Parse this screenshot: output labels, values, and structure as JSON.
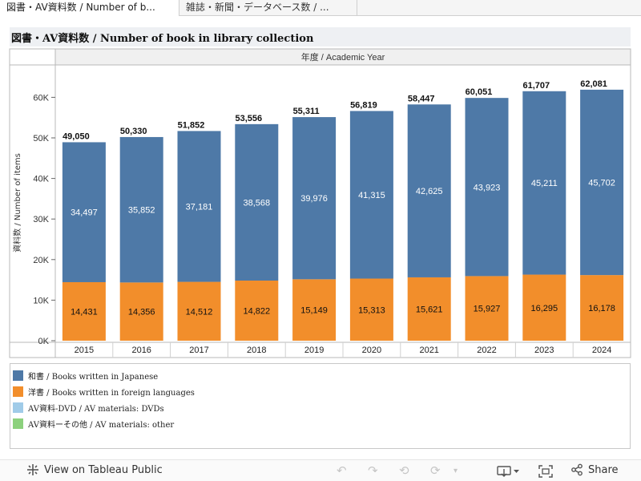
{
  "tabs": [
    "図書・AV資料数 / Number of b...",
    "雑誌・新聞・データベース数 / ..."
  ],
  "title": "図書・AV資料数 / Number of book in library collection",
  "colors": {
    "japanese": "#4e79a7",
    "foreign": "#f28e2b",
    "dvd": "#a0cbe8",
    "other": "#8cd17d"
  },
  "chart_data": {
    "type": "bar",
    "stacked": true,
    "title": "図書・AV資料数 / Number of book in library collection",
    "column_header": "年度 / Academic Year",
    "xlabel": "",
    "ylabel": "資料数 / Number of items",
    "ylim": [
      0,
      70000
    ],
    "yticks": [
      0,
      10000,
      20000,
      30000,
      40000,
      50000,
      60000
    ],
    "ytick_labels": [
      "0K",
      "10K",
      "20K",
      "30K",
      "40K",
      "50K",
      "60K"
    ],
    "categories": [
      "2015",
      "2016",
      "2017",
      "2018",
      "2019",
      "2020",
      "2021",
      "2022",
      "2023",
      "2024"
    ],
    "series": [
      {
        "name": "和書 / Books written in Japanese",
        "key": "japanese",
        "values": [
          34497,
          35852,
          37181,
          38568,
          39976,
          41315,
          42625,
          43923,
          45211,
          45702
        ],
        "labels": [
          "34,497",
          "35,852",
          "37,181",
          "38,568",
          "39,976",
          "41,315",
          "42,625",
          "43,923",
          "45,211",
          "45,702"
        ]
      },
      {
        "name": "洋書 / Books written in foreign languages",
        "key": "foreign",
        "values": [
          14431,
          14356,
          14512,
          14822,
          15149,
          15313,
          15621,
          15927,
          16295,
          16178
        ],
        "labels": [
          "14,431",
          "14,356",
          "14,512",
          "14,822",
          "15,149",
          "15,313",
          "15,621",
          "15,927",
          "16,295",
          "16,178"
        ]
      }
    ],
    "totals": [
      49050,
      50330,
      51852,
      53556,
      55311,
      56819,
      58447,
      60051,
      61707,
      62081
    ],
    "total_labels": [
      "49,050",
      "50,330",
      "51,852",
      "53,556",
      "55,311",
      "56,819",
      "58,447",
      "60,051",
      "61,707",
      "62,081"
    ]
  },
  "legend": [
    {
      "label": "和書 / Books written in Japanese",
      "color": "#4e79a7"
    },
    {
      "label": "洋書 / Books written in foreign languages",
      "color": "#f28e2b"
    },
    {
      "label": "AV資料-DVD / AV materials: DVDs",
      "color": "#a0cbe8"
    },
    {
      "label": "AV資料ーその他 / AV materials: other",
      "color": "#8cd17d"
    }
  ],
  "footer": {
    "view_label": "View on Tableau Public",
    "share_label": "Share",
    "icons": [
      "tableau-logo-icon",
      "undo-icon",
      "redo-icon",
      "revert-icon",
      "refresh-icon",
      "pause-icon",
      "download-icon",
      "fullscreen-icon",
      "share-icon"
    ]
  }
}
